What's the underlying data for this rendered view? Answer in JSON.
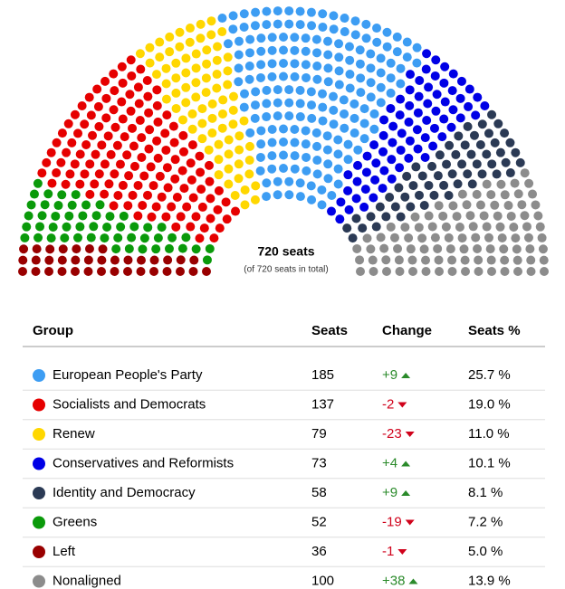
{
  "chart_data": {
    "type": "parliament",
    "title": "720 seats",
    "subtitle": "(of 720 seats in total)",
    "headers": [
      "Group",
      "Seats",
      "Change",
      "Seats %"
    ],
    "categories": [
      "European People's Party",
      "Socialists and Democrats",
      "Renew",
      "Conservatives and Reformists",
      "Identity and Democracy",
      "Greens",
      "Left",
      "Nonaligned"
    ],
    "colors": [
      "#3d9df3",
      "#e60000",
      "#ffd700",
      "#0000e6",
      "#2b3a55",
      "#0a9a0a",
      "#990000",
      "#8c8c8c"
    ],
    "values": [
      185,
      137,
      79,
      73,
      58,
      52,
      36,
      100
    ],
    "change_values": [
      9,
      -2,
      -23,
      4,
      9,
      -19,
      -1,
      38
    ],
    "change_labels": [
      "+9",
      "-2",
      "-23",
      "+4",
      "+9",
      "-19",
      "-1",
      "+38"
    ],
    "share_values": [
      25.7,
      19.0,
      11.0,
      10.1,
      8.1,
      7.2,
      5.0,
      13.9
    ],
    "share_labels": [
      "25.7 %",
      "19.0 %",
      "11.0 %",
      "10.1 %",
      "8.1 %",
      "7.2 %",
      "5.0 %",
      "13.9 %"
    ]
  }
}
